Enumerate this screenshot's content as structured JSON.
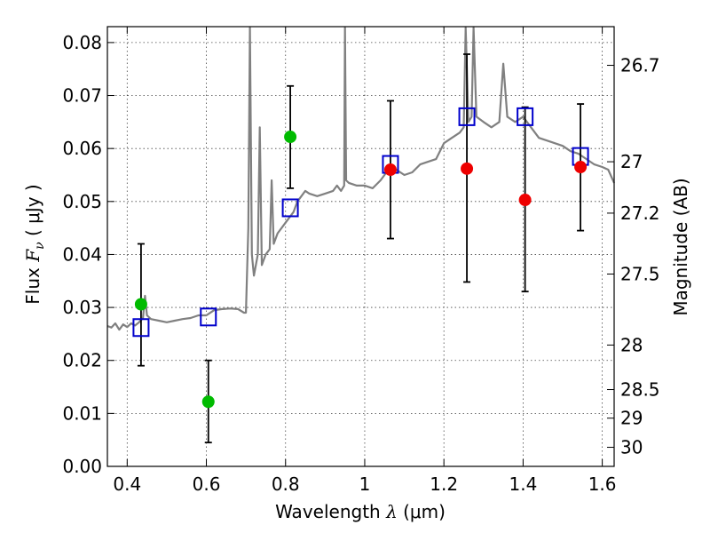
{
  "chart_data": {
    "type": "scatter",
    "title": "",
    "xlabel_prefix": "Wavelength",
    "xlabel_symbol": "λ",
    "xlabel_unit": "(μm)",
    "ylabel_prefix": "Flux",
    "ylabel_symbol": "F",
    "ylabel_subscript": "ν",
    "ylabel_unit": "( μJy )",
    "y2label": "Magnitude (AB)",
    "xlim": [
      0.35,
      1.63
    ],
    "ylim": [
      0.0,
      0.083
    ],
    "grid": true,
    "x_ticks": [
      0.4,
      0.6,
      0.8,
      1.0,
      1.2,
      1.4,
      1.6
    ],
    "x_tick_labels": [
      "0.4",
      "0.6",
      "0.8",
      "1",
      "1.2",
      "1.4",
      "1.6"
    ],
    "y_ticks": [
      0.0,
      0.01,
      0.02,
      0.03,
      0.04,
      0.05,
      0.06,
      0.07,
      0.08
    ],
    "y_tick_labels": [
      "0.00",
      "0.01",
      "0.02",
      "0.03",
      "0.04",
      "0.05",
      "0.06",
      "0.07",
      "0.08"
    ],
    "y2_ticks": [
      {
        "label": "26.7",
        "flux": 0.0757
      },
      {
        "label": "27",
        "flux": 0.0575
      },
      {
        "label": "27.2",
        "flux": 0.0478
      },
      {
        "label": "27.5",
        "flux": 0.0363
      },
      {
        "label": "28",
        "flux": 0.0229
      },
      {
        "label": "28.5",
        "flux": 0.0145
      },
      {
        "label": "29",
        "flux": 0.0091
      },
      {
        "label": "30",
        "flux": 0.0036
      }
    ],
    "spectrum": {
      "color": "#808080",
      "points": [
        [
          0.35,
          0.0265
        ],
        [
          0.36,
          0.0262
        ],
        [
          0.37,
          0.027
        ],
        [
          0.38,
          0.0258
        ],
        [
          0.39,
          0.0268
        ],
        [
          0.4,
          0.0263
        ],
        [
          0.41,
          0.027
        ],
        [
          0.42,
          0.0266
        ],
        [
          0.43,
          0.0272
        ],
        [
          0.44,
          0.028
        ],
        [
          0.445,
          0.0322
        ],
        [
          0.45,
          0.0285
        ],
        [
          0.46,
          0.0278
        ],
        [
          0.48,
          0.0275
        ],
        [
          0.5,
          0.0272
        ],
        [
          0.52,
          0.0275
        ],
        [
          0.54,
          0.0278
        ],
        [
          0.56,
          0.028
        ],
        [
          0.58,
          0.0285
        ],
        [
          0.6,
          0.0285
        ],
        [
          0.62,
          0.0295
        ],
        [
          0.64,
          0.0297
        ],
        [
          0.66,
          0.0298
        ],
        [
          0.68,
          0.0297
        ],
        [
          0.695,
          0.029
        ],
        [
          0.7,
          0.029
        ],
        [
          0.706,
          0.045
        ],
        [
          0.71,
          0.083
        ],
        [
          0.715,
          0.04
        ],
        [
          0.72,
          0.036
        ],
        [
          0.73,
          0.04
        ],
        [
          0.735,
          0.064
        ],
        [
          0.74,
          0.038
        ],
        [
          0.75,
          0.04
        ],
        [
          0.76,
          0.041
        ],
        [
          0.765,
          0.054
        ],
        [
          0.77,
          0.042
        ],
        [
          0.78,
          0.044
        ],
        [
          0.79,
          0.045
        ],
        [
          0.8,
          0.046
        ],
        [
          0.81,
          0.047
        ],
        [
          0.82,
          0.048
        ],
        [
          0.83,
          0.05
        ],
        [
          0.84,
          0.051
        ],
        [
          0.85,
          0.052
        ],
        [
          0.86,
          0.0515
        ],
        [
          0.88,
          0.051
        ],
        [
          0.9,
          0.0515
        ],
        [
          0.92,
          0.052
        ],
        [
          0.93,
          0.053
        ],
        [
          0.94,
          0.052
        ],
        [
          0.948,
          0.053
        ],
        [
          0.95,
          0.083
        ],
        [
          0.953,
          0.054
        ],
        [
          0.96,
          0.0535
        ],
        [
          0.98,
          0.053
        ],
        [
          1.0,
          0.053
        ],
        [
          1.02,
          0.0525
        ],
        [
          1.04,
          0.054
        ],
        [
          1.06,
          0.056
        ],
        [
          1.08,
          0.056
        ],
        [
          1.1,
          0.055
        ],
        [
          1.12,
          0.0555
        ],
        [
          1.14,
          0.057
        ],
        [
          1.16,
          0.0575
        ],
        [
          1.18,
          0.058
        ],
        [
          1.2,
          0.061
        ],
        [
          1.22,
          0.062
        ],
        [
          1.24,
          0.063
        ],
        [
          1.25,
          0.064
        ],
        [
          1.255,
          0.083
        ],
        [
          1.262,
          0.065
        ],
        [
          1.27,
          0.066
        ],
        [
          1.275,
          0.083
        ],
        [
          1.282,
          0.066
        ],
        [
          1.3,
          0.065
        ],
        [
          1.32,
          0.064
        ],
        [
          1.34,
          0.065
        ],
        [
          1.35,
          0.076
        ],
        [
          1.36,
          0.066
        ],
        [
          1.38,
          0.065
        ],
        [
          1.4,
          0.066
        ],
        [
          1.42,
          0.064
        ],
        [
          1.44,
          0.062
        ],
        [
          1.46,
          0.0615
        ],
        [
          1.48,
          0.061
        ],
        [
          1.5,
          0.0605
        ],
        [
          1.52,
          0.0595
        ],
        [
          1.54,
          0.059
        ],
        [
          1.56,
          0.058
        ],
        [
          1.58,
          0.057
        ],
        [
          1.6,
          0.0565
        ],
        [
          1.615,
          0.056
        ],
        [
          1.63,
          0.0535
        ]
      ]
    },
    "model_points": {
      "marker": "open-square",
      "color": "#0000cc",
      "points": [
        [
          0.435,
          0.0262
        ],
        [
          0.605,
          0.0282
        ],
        [
          0.812,
          0.0488
        ],
        [
          1.065,
          0.057
        ],
        [
          1.258,
          0.066
        ],
        [
          1.405,
          0.066
        ],
        [
          1.545,
          0.0585
        ]
      ]
    },
    "detections": {
      "marker": "filled-circle",
      "color": "#00bb00",
      "points": [
        {
          "x": 0.435,
          "y": 0.0306,
          "yerr_low": 0.019,
          "yerr_high": 0.042
        },
        {
          "x": 0.605,
          "y": 0.0122,
          "yerr_low": 0.0045,
          "yerr_high": 0.02
        },
        {
          "x": 0.812,
          "y": 0.0622,
          "yerr_low": 0.0525,
          "yerr_high": 0.0718
        }
      ]
    },
    "nondetections": {
      "marker": "filled-circle",
      "color": "#ee0000",
      "points": [
        {
          "x": 1.065,
          "y": 0.056,
          "yerr_low": 0.043,
          "yerr_high": 0.069
        },
        {
          "x": 1.258,
          "y": 0.0562,
          "yerr_low": 0.0348,
          "yerr_high": 0.0778
        },
        {
          "x": 1.405,
          "y": 0.0503,
          "yerr_low": 0.033,
          "yerr_high": 0.0678
        },
        {
          "x": 1.545,
          "y": 0.0565,
          "yerr_low": 0.0445,
          "yerr_high": 0.0684
        }
      ]
    }
  }
}
